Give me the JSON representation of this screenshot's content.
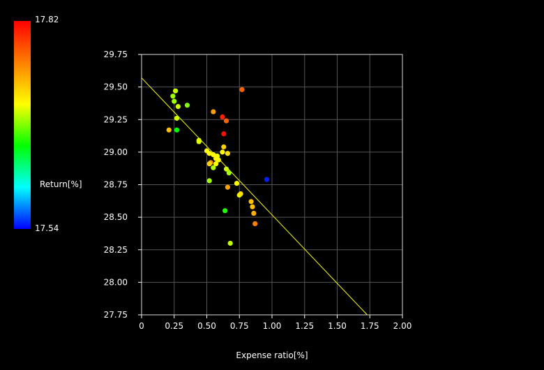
{
  "colorbar": {
    "max_label": "17.82",
    "min_label": "17.54",
    "title": "Return[%]",
    "colors": [
      "#ff0000",
      "#ff8000",
      "#ffff00",
      "#00ff00",
      "#00ffff",
      "#0000ff"
    ]
  },
  "chart_data": {
    "type": "scatter",
    "xlabel": "Expense ratio[%]",
    "ylabel": "",
    "xlim": [
      0,
      2.0
    ],
    "ylim": [
      27.75,
      29.75
    ],
    "xticks": [
      "0",
      "0.25",
      "0.50",
      "0.75",
      "1.00",
      "1.25",
      "1.50",
      "1.75",
      "2.00"
    ],
    "yticks": [
      "27.75",
      "28.00",
      "28.25",
      "28.50",
      "28.75",
      "29.00",
      "29.25",
      "29.50",
      "29.75"
    ],
    "grid": true,
    "trendline": {
      "x": [
        0,
        1.73
      ],
      "y": [
        29.57,
        27.75
      ],
      "color": "#ffff00"
    },
    "points": [
      {
        "x": 0.26,
        "y": 29.47,
        "c": "#c8ff00"
      },
      {
        "x": 0.24,
        "y": 29.43,
        "c": "#a0ff00"
      },
      {
        "x": 0.25,
        "y": 29.39,
        "c": "#a0ff00"
      },
      {
        "x": 0.28,
        "y": 29.35,
        "c": "#d0ff00"
      },
      {
        "x": 0.35,
        "y": 29.36,
        "c": "#80ff00"
      },
      {
        "x": 0.27,
        "y": 29.26,
        "c": "#d0ff00"
      },
      {
        "x": 0.21,
        "y": 29.17,
        "c": "#ffc000"
      },
      {
        "x": 0.27,
        "y": 29.17,
        "c": "#00ff00"
      },
      {
        "x": 0.44,
        "y": 29.09,
        "c": "#e0ff00"
      },
      {
        "x": 0.44,
        "y": 29.08,
        "c": "#e0ff00"
      },
      {
        "x": 0.55,
        "y": 29.31,
        "c": "#ffa000"
      },
      {
        "x": 0.62,
        "y": 29.27,
        "c": "#ff2000"
      },
      {
        "x": 0.65,
        "y": 29.24,
        "c": "#ff6000"
      },
      {
        "x": 0.63,
        "y": 29.14,
        "c": "#ff1000"
      },
      {
        "x": 0.77,
        "y": 29.48,
        "c": "#ff6000"
      },
      {
        "x": 0.63,
        "y": 29.04,
        "c": "#ffd000"
      },
      {
        "x": 0.5,
        "y": 29.01,
        "c": "#ffff00"
      },
      {
        "x": 0.52,
        "y": 28.99,
        "c": "#ffff00"
      },
      {
        "x": 0.55,
        "y": 28.98,
        "c": "#ffff00"
      },
      {
        "x": 0.58,
        "y": 28.97,
        "c": "#ffff00"
      },
      {
        "x": 0.62,
        "y": 29.0,
        "c": "#ffff00"
      },
      {
        "x": 0.66,
        "y": 28.99,
        "c": "#ffe000"
      },
      {
        "x": 0.57,
        "y": 28.95,
        "c": "#ffff00"
      },
      {
        "x": 0.59,
        "y": 28.94,
        "c": "#ffff00"
      },
      {
        "x": 0.53,
        "y": 28.92,
        "c": "#ff9000"
      },
      {
        "x": 0.52,
        "y": 28.91,
        "c": "#ffd000"
      },
      {
        "x": 0.57,
        "y": 28.91,
        "c": "#ffff00"
      },
      {
        "x": 0.55,
        "y": 28.88,
        "c": "#b0ff00"
      },
      {
        "x": 0.65,
        "y": 28.87,
        "c": "#d0ff00"
      },
      {
        "x": 0.67,
        "y": 28.84,
        "c": "#a0ff00"
      },
      {
        "x": 0.52,
        "y": 28.78,
        "c": "#a0ff00"
      },
      {
        "x": 0.73,
        "y": 28.76,
        "c": "#ffff00"
      },
      {
        "x": 0.66,
        "y": 28.73,
        "c": "#ffa000"
      },
      {
        "x": 0.96,
        "y": 28.79,
        "c": "#0020ff"
      },
      {
        "x": 0.75,
        "y": 28.67,
        "c": "#e0ff00"
      },
      {
        "x": 0.76,
        "y": 28.68,
        "c": "#ffe000"
      },
      {
        "x": 0.84,
        "y": 28.62,
        "c": "#ffc000"
      },
      {
        "x": 0.85,
        "y": 28.58,
        "c": "#ffc000"
      },
      {
        "x": 0.86,
        "y": 28.53,
        "c": "#ffb000"
      },
      {
        "x": 0.64,
        "y": 28.55,
        "c": "#20ff00"
      },
      {
        "x": 0.87,
        "y": 28.45,
        "c": "#ff8000"
      },
      {
        "x": 0.68,
        "y": 28.3,
        "c": "#c0ff00"
      }
    ]
  }
}
